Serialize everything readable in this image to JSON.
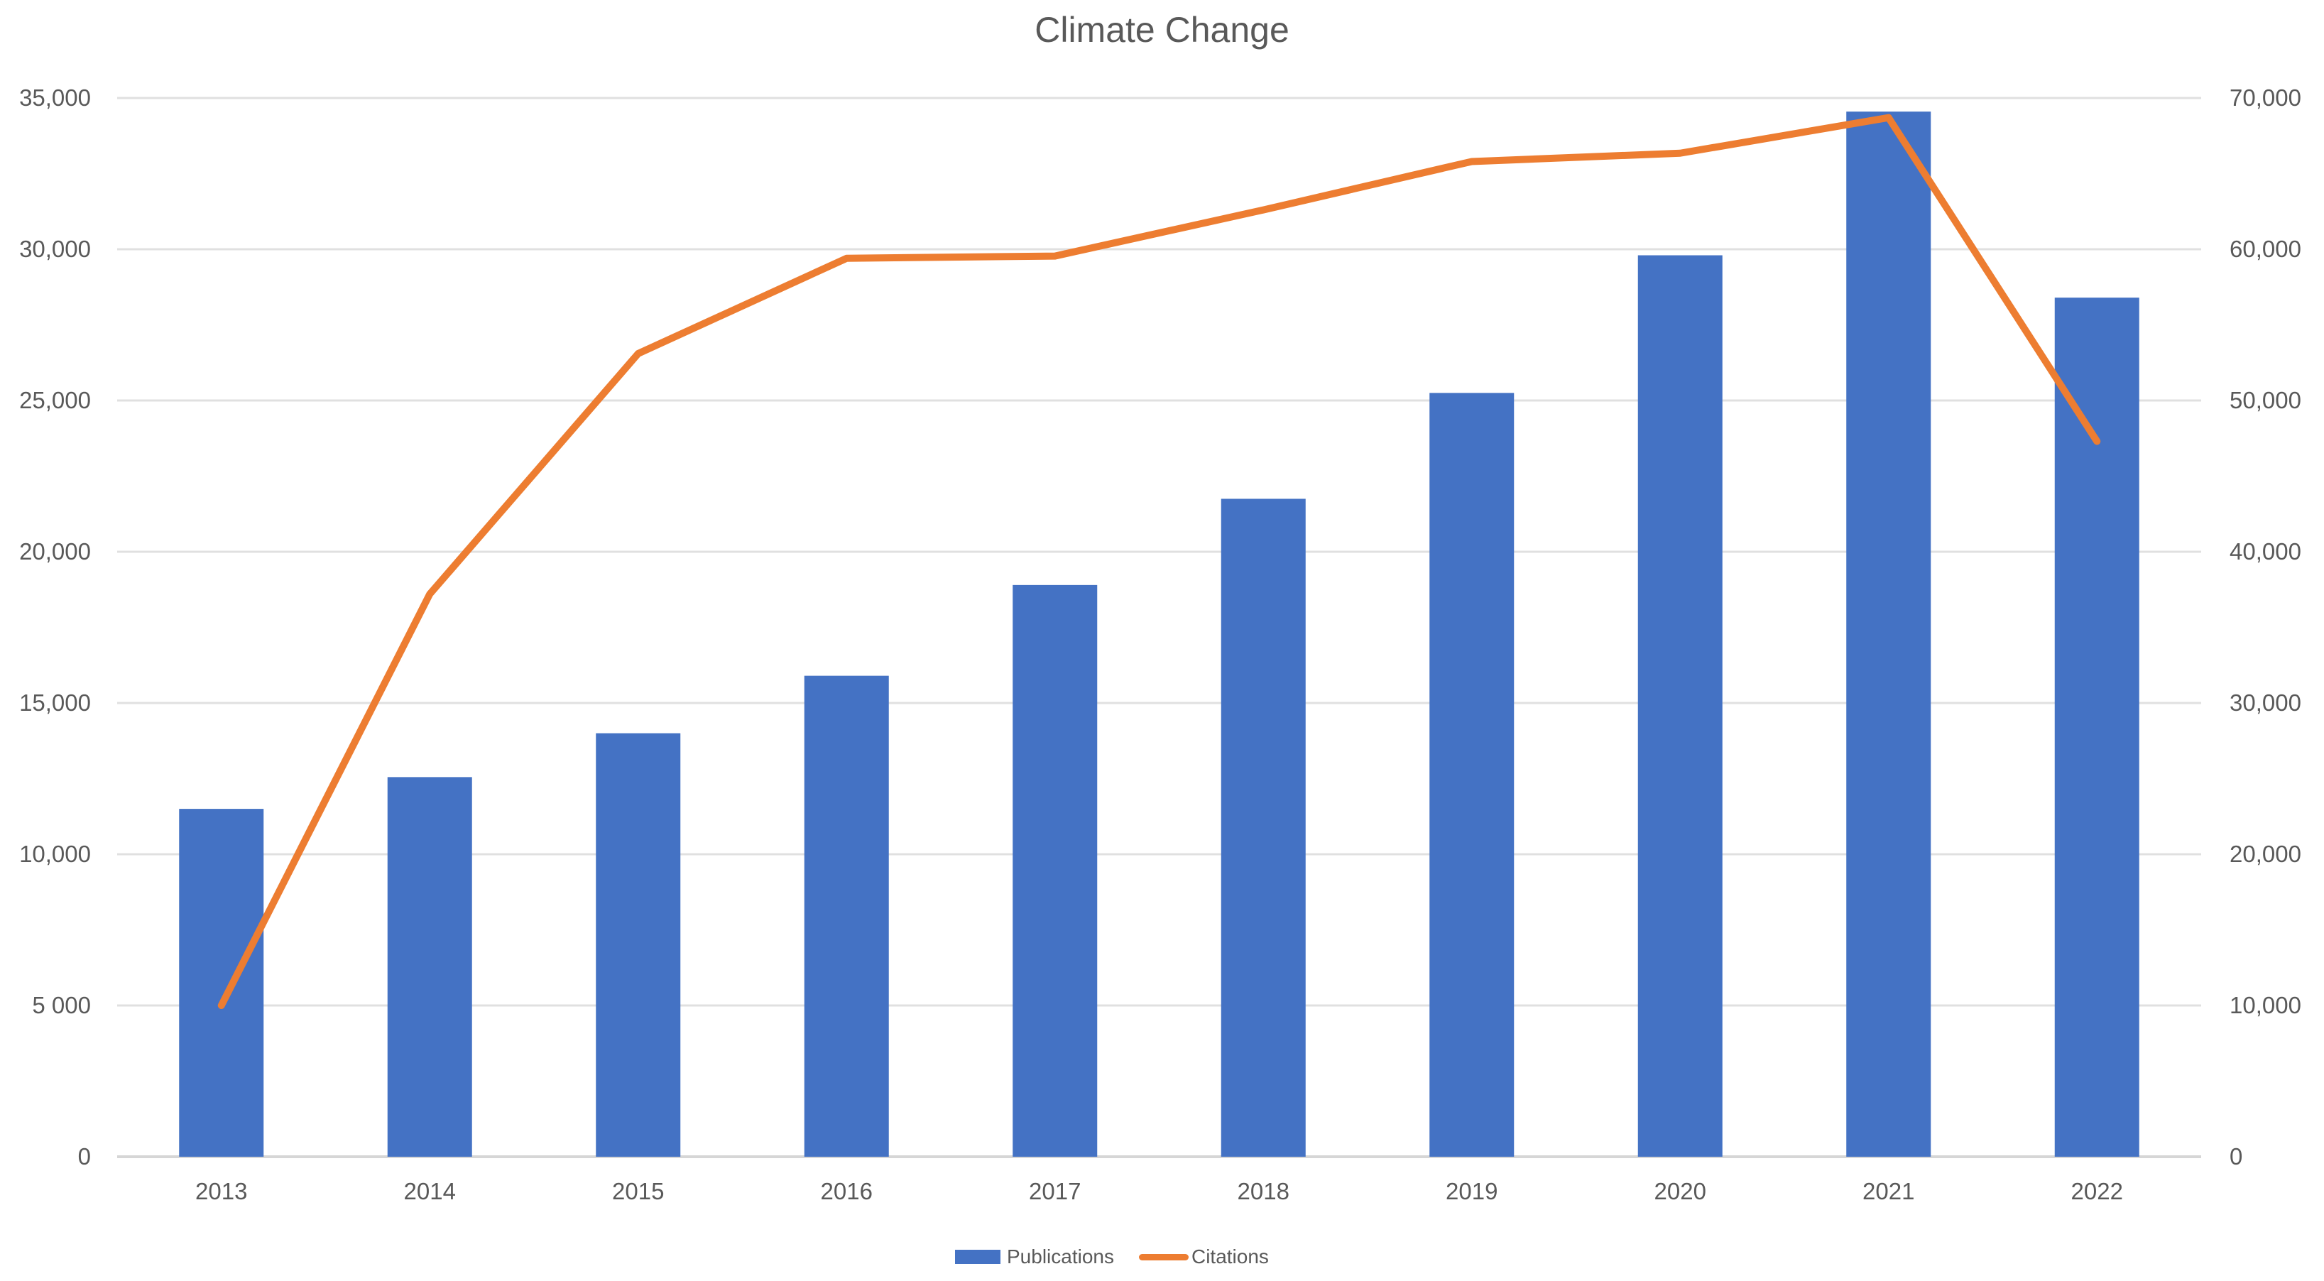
{
  "chart_data": {
    "type": "combo",
    "title": "Climate Change",
    "categories": [
      "2013",
      "2014",
      "2015",
      "2016",
      "2017",
      "2018",
      "2019",
      "2020",
      "2021",
      "2022"
    ],
    "series": [
      {
        "name": "Publications",
        "type": "bar",
        "axis": "left",
        "color": "#4472C4",
        "values": [
          11500,
          12550,
          14000,
          15900,
          18900,
          21750,
          25250,
          29800,
          34550,
          28400
        ]
      },
      {
        "name": "Citations",
        "type": "line",
        "axis": "right",
        "color": "#ED7D31",
        "values": [
          10000,
          37200,
          53100,
          59400,
          59550,
          62600,
          65800,
          66350,
          68700,
          47300
        ]
      }
    ],
    "left_axis": {
      "min": 0,
      "max": 35000,
      "step": 5000,
      "tick_labels_top_to_bottom": [
        "35,000",
        "30,000",
        "25,000",
        "20,000",
        "15,000",
        "10,000",
        "5 000",
        "0"
      ]
    },
    "right_axis": {
      "min": 0,
      "max": 70000,
      "step": 10000,
      "tick_labels_top_to_bottom": [
        "70,000",
        "60,000",
        "50,000",
        "40,000",
        "30,000",
        "20,000",
        "10,000",
        "0"
      ]
    },
    "legend": {
      "position": "bottom",
      "entries": [
        "Publications",
        "Citations"
      ]
    },
    "grid": "horizontal",
    "colors": {
      "gridline": "#E0E0E0",
      "baseline": "#D6D6D6",
      "axis_text": "#595959",
      "title_text": "#595959",
      "background": "#FFFFFF"
    }
  }
}
